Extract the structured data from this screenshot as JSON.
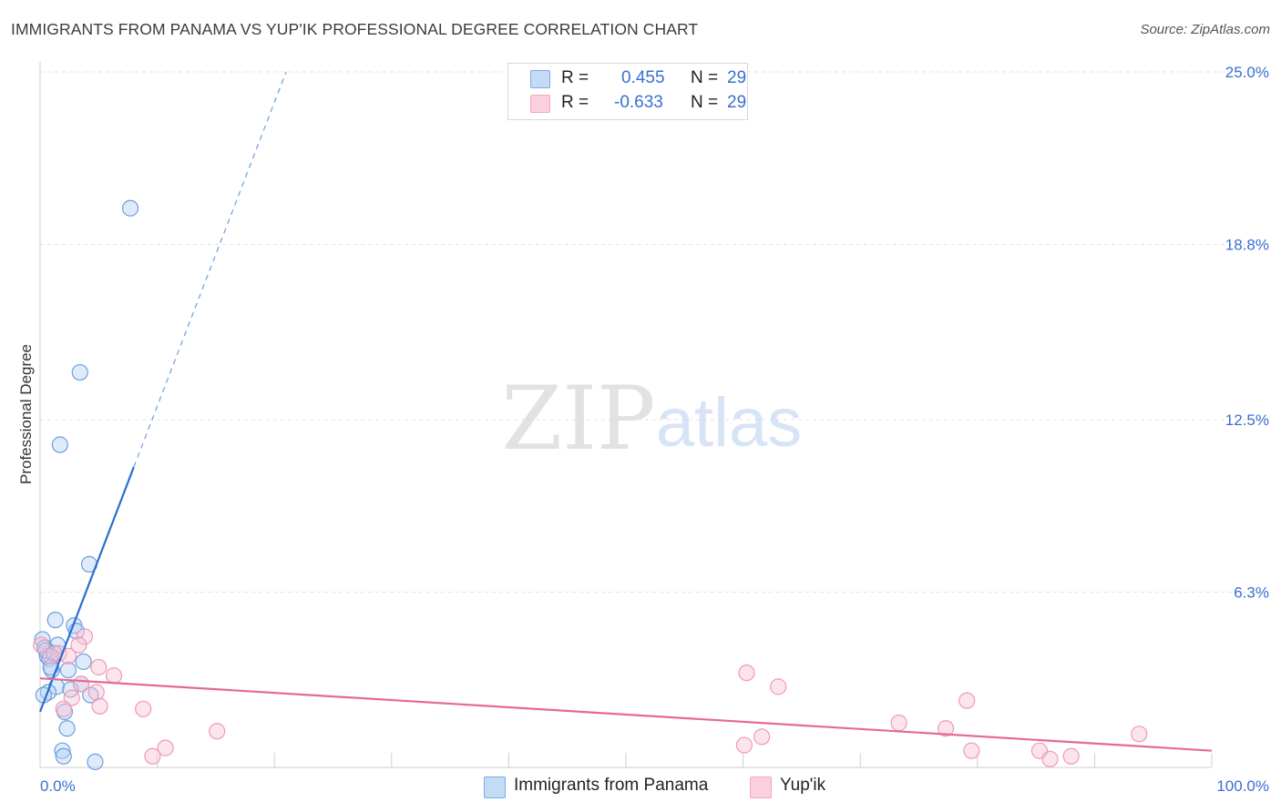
{
  "title": "IMMIGRANTS FROM PANAMA VS YUP'IK PROFESSIONAL DEGREE CORRELATION CHART",
  "source": "Source: ZipAtlas.com",
  "watermark": {
    "zip": "ZIP",
    "atlas": "atlas"
  },
  "legend": {
    "r_label": "R =",
    "n_label": "N =",
    "series": [
      {
        "name": "Immigrants from Panama",
        "r": "0.455",
        "n": "29",
        "color": "#a9c8f0"
      },
      {
        "name": "Yup'ik",
        "r": "-0.633",
        "n": "29",
        "color": "#f6b6ca"
      }
    ]
  },
  "chart_data": {
    "type": "scatter",
    "title": "IMMIGRANTS FROM PANAMA VS YUP'IK PROFESSIONAL DEGREE CORRELATION CHART",
    "xlabel": "",
    "ylabel": "Professional Degree",
    "xlim": [
      0,
      100
    ],
    "ylim": [
      0,
      25.0
    ],
    "x_tick_labels": [
      "0.0%",
      "100.0%"
    ],
    "y_ticks": [
      {
        "value": 6.3,
        "label": "6.3%"
      },
      {
        "value": 12.5,
        "label": "12.5%"
      },
      {
        "value": 18.8,
        "label": "18.8%"
      },
      {
        "value": 25.0,
        "label": "25.0%"
      }
    ],
    "grid": true,
    "series": [
      {
        "name": "Immigrants from Panama",
        "color": "#7aa9e6",
        "line_color": "#2a6fd0",
        "points": [
          [
            7.7,
            20.1
          ],
          [
            3.4,
            14.2
          ],
          [
            1.7,
            11.6
          ],
          [
            4.2,
            7.3
          ],
          [
            1.3,
            5.3
          ],
          [
            2.9,
            5.1
          ],
          [
            0.2,
            4.6
          ],
          [
            1.5,
            4.4
          ],
          [
            3.1,
            4.9
          ],
          [
            0.4,
            4.3
          ],
          [
            0.6,
            4.0
          ],
          [
            0.8,
            3.9
          ],
          [
            3.7,
            3.8
          ],
          [
            1.0,
            3.5
          ],
          [
            2.4,
            3.5
          ],
          [
            1.4,
            2.9
          ],
          [
            3.5,
            3.0
          ],
          [
            0.7,
            2.7
          ],
          [
            0.3,
            2.6
          ],
          [
            4.3,
            2.6
          ],
          [
            2.1,
            2.0
          ],
          [
            2.3,
            1.4
          ],
          [
            1.9,
            0.6
          ],
          [
            2.0,
            0.4
          ],
          [
            4.7,
            0.2
          ],
          [
            0.5,
            4.2
          ],
          [
            1.2,
            4.1
          ],
          [
            0.9,
            3.6
          ],
          [
            2.6,
            2.8
          ]
        ],
        "trend": {
          "x0": 0.0,
          "y0": 2.0,
          "x1": 8.0,
          "y1": 10.8,
          "dash_x1": 21.0,
          "dash_y1": 25.0
        }
      },
      {
        "name": "Yup'ik",
        "color": "#f3a6bf",
        "line_color": "#e46a93",
        "points": [
          [
            0.1,
            4.4
          ],
          [
            1.6,
            4.1
          ],
          [
            3.8,
            4.7
          ],
          [
            0.9,
            4.0
          ],
          [
            5.0,
            3.6
          ],
          [
            6.3,
            3.3
          ],
          [
            3.5,
            3.0
          ],
          [
            4.8,
            2.7
          ],
          [
            2.7,
            2.5
          ],
          [
            5.1,
            2.2
          ],
          [
            8.8,
            2.1
          ],
          [
            2.0,
            2.1
          ],
          [
            15.1,
            1.3
          ],
          [
            10.7,
            0.7
          ],
          [
            9.6,
            0.4
          ],
          [
            3.3,
            4.4
          ],
          [
            60.3,
            3.4
          ],
          [
            63.0,
            2.9
          ],
          [
            73.3,
            1.6
          ],
          [
            77.3,
            1.4
          ],
          [
            79.1,
            2.4
          ],
          [
            61.6,
            1.1
          ],
          [
            60.1,
            0.8
          ],
          [
            79.5,
            0.6
          ],
          [
            85.3,
            0.6
          ],
          [
            86.2,
            0.3
          ],
          [
            88.0,
            0.4
          ],
          [
            93.8,
            1.2
          ],
          [
            2.4,
            4.0
          ]
        ],
        "trend": {
          "x0": 0.0,
          "y0": 3.2,
          "x1": 100.0,
          "y1": 0.6
        }
      }
    ]
  }
}
